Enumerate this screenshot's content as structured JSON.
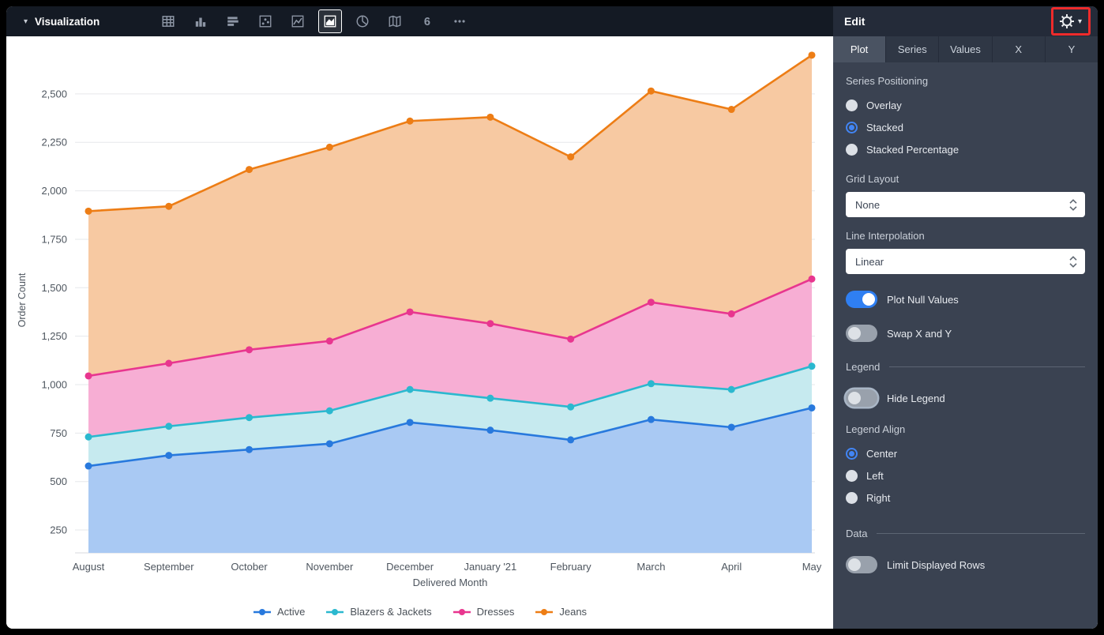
{
  "toolbar": {
    "title": "Visualization",
    "icons": [
      {
        "name": "table",
        "selected": false
      },
      {
        "name": "column-chart",
        "selected": false
      },
      {
        "name": "bar-chart",
        "selected": false
      },
      {
        "name": "scatter",
        "selected": false
      },
      {
        "name": "line-chart",
        "selected": false
      },
      {
        "name": "area-chart",
        "selected": true
      },
      {
        "name": "pie-chart",
        "selected": false
      },
      {
        "name": "map",
        "selected": false
      },
      {
        "name": "single-value",
        "selected": false
      },
      {
        "name": "more",
        "selected": false
      }
    ]
  },
  "panel": {
    "title": "Edit",
    "tabs": [
      {
        "label": "Plot",
        "active": true
      },
      {
        "label": "Series",
        "active": false
      },
      {
        "label": "Values",
        "active": false
      },
      {
        "label": "X",
        "active": false
      },
      {
        "label": "Y",
        "active": false
      }
    ],
    "series_positioning": {
      "label": "Series Positioning",
      "options": [
        {
          "label": "Overlay",
          "selected": false
        },
        {
          "label": "Stacked",
          "selected": true
        },
        {
          "label": "Stacked Percentage",
          "selected": false
        }
      ]
    },
    "grid_layout": {
      "label": "Grid Layout",
      "value": "None"
    },
    "line_interpolation": {
      "label": "Line Interpolation",
      "value": "Linear"
    },
    "plot_null_values": {
      "label": "Plot Null Values",
      "on": true
    },
    "swap_x_y": {
      "label": "Swap X and Y",
      "on": false
    },
    "legend_section_label": "Legend",
    "hide_legend": {
      "label": "Hide Legend",
      "on": false
    },
    "legend_align": {
      "label": "Legend Align",
      "options": [
        {
          "label": "Center",
          "selected": true
        },
        {
          "label": "Left",
          "selected": false
        },
        {
          "label": "Right",
          "selected": false
        }
      ]
    },
    "data_section_label": "Data",
    "limit_displayed_rows": {
      "label": "Limit Displayed Rows",
      "on": false
    }
  },
  "annotation": {
    "highlight_color": "#EE2B2B",
    "target": "settings-gear"
  },
  "chart_data": {
    "type": "area",
    "stacked": true,
    "title": "",
    "xlabel": "Delivered Month",
    "ylabel": "Order Count",
    "x": [
      "August",
      "September",
      "October",
      "November",
      "December",
      "January '21",
      "February",
      "March",
      "April",
      "May"
    ],
    "series": [
      {
        "name": "Active",
        "color": "#2879DD",
        "fill": "#A9C9F3",
        "values": [
          580,
          635,
          665,
          695,
          805,
          765,
          715,
          820,
          780,
          880
        ]
      },
      {
        "name": "Blazers & Jackets",
        "color": "#2BB8CF",
        "fill": "#C6EAEF",
        "values": [
          150,
          150,
          165,
          170,
          170,
          165,
          170,
          185,
          195,
          215
        ]
      },
      {
        "name": "Dresses",
        "color": "#E8368F",
        "fill": "#F7AED4",
        "values": [
          315,
          325,
          350,
          360,
          400,
          385,
          350,
          420,
          390,
          450
        ]
      },
      {
        "name": "Jeans",
        "color": "#ED7D15",
        "fill": "#F7C9A2",
        "values": [
          850,
          810,
          930,
          1000,
          985,
          1065,
          940,
          1090,
          1055,
          1155
        ]
      }
    ],
    "yticks": [
      250,
      500,
      750,
      1000,
      1250,
      1500,
      1750,
      2000,
      2250,
      2500
    ],
    "ylim": [
      132,
      2740
    ],
    "grid": "horizontal",
    "legend_position": "bottom-center"
  }
}
